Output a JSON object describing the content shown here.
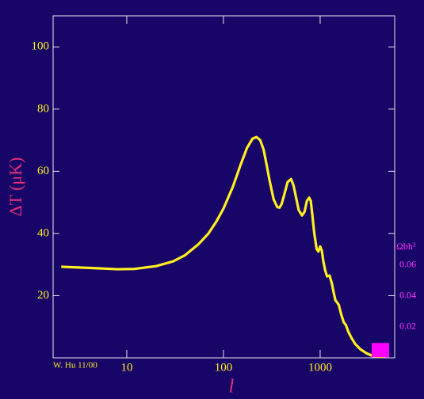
{
  "chart_data": {
    "type": "line",
    "x_label": "l",
    "y_label": "ΔT (μK)",
    "y2_label": "Ωbh²",
    "credit": "W. Hu 11/00",
    "x": [
      2.1,
      3,
      5,
      8,
      12,
      20,
      30,
      40,
      55,
      70,
      85,
      100,
      125,
      150,
      175,
      200,
      220,
      240,
      260,
      280,
      300,
      330,
      360,
      380,
      400,
      430,
      460,
      500,
      530,
      560,
      600,
      650,
      690,
      730,
      770,
      800,
      830,
      870,
      920,
      960,
      1000,
      1040,
      1080,
      1130,
      1180,
      1250,
      1320,
      1380,
      1440,
      1500,
      1560,
      1650,
      1750,
      1850,
      1950,
      2100,
      2300,
      2600,
      3000,
      3500,
      4200,
      4700
    ],
    "series": [
      {
        "name": "ΔT",
        "color": "#ffee22",
        "values": [
          29.3,
          29.1,
          28.8,
          28.5,
          28.6,
          29.5,
          31,
          33,
          36.5,
          40,
          44,
          48,
          55,
          62,
          67.5,
          70.5,
          71,
          70,
          67,
          62,
          57,
          51,
          48.5,
          48.3,
          49.5,
          53,
          56.5,
          57.5,
          55.5,
          52,
          47.5,
          45.8,
          47,
          50.5,
          51.5,
          50.5,
          46,
          40,
          35,
          34.2,
          35.8,
          34.5,
          31,
          28,
          26.2,
          26.5,
          24,
          21,
          18.5,
          17.8,
          17,
          14,
          11.5,
          10.5,
          8.5,
          6.5,
          4.5,
          2.8,
          1.5,
          0.6,
          0.3,
          0.5
        ]
      }
    ],
    "slider": {
      "x": 4200,
      "value": 0.005,
      "axis": "y2",
      "color": "#ff00ff"
    },
    "xlim": [
      1.73,
      5900
    ],
    "xscale": "log",
    "xticks": [
      10,
      100,
      1000
    ],
    "ylim": [
      0,
      110
    ],
    "yticks": [
      20,
      40,
      60,
      80,
      100
    ],
    "y2lim": [
      0,
      0.2215
    ],
    "y2ticks": [
      0.02,
      0.04,
      0.06
    ]
  }
}
